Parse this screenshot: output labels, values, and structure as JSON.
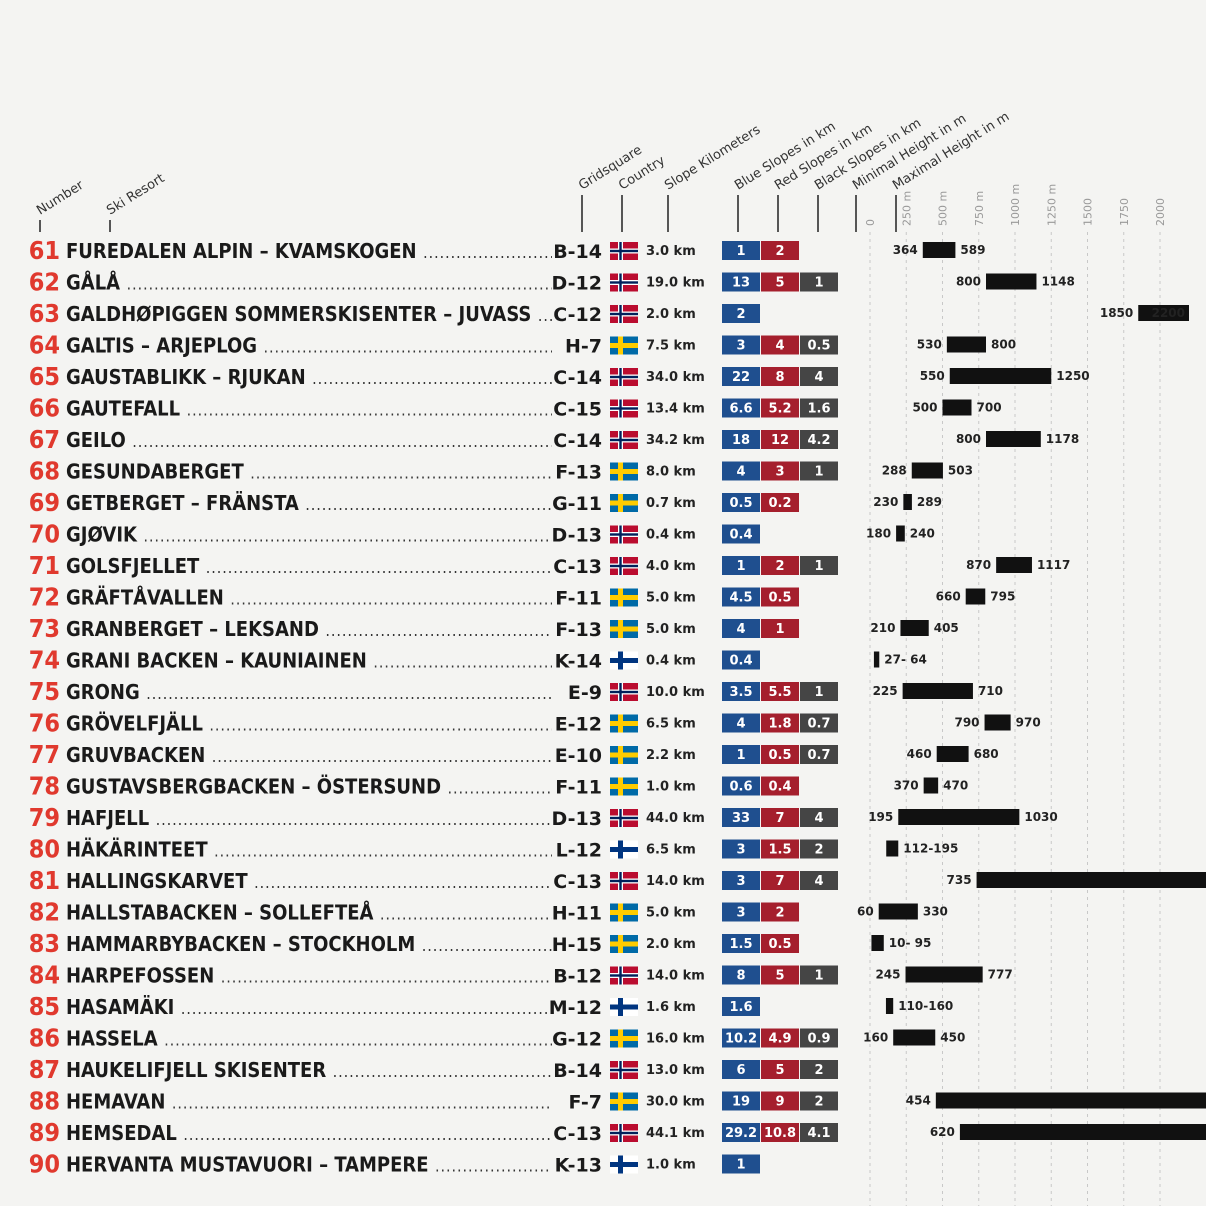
{
  "headers": {
    "number": "Number",
    "resort": "Ski Resort",
    "grid": "Gridsquare",
    "country": "Country",
    "km": "Slope Kilometers",
    "blue": "Blue Slopes in km",
    "red": "Red Slopes in km",
    "black": "Black Slopes in km",
    "min": "Minimal Height in m",
    "max": "Maximal Height in m"
  },
  "height_axis": [
    {
      "value": 0,
      "label": "0"
    },
    {
      "value": 250,
      "label": "250 m"
    },
    {
      "value": 500,
      "label": "500 m"
    },
    {
      "value": 750,
      "label": "750 m"
    },
    {
      "value": 1000,
      "label": "1000 m"
    },
    {
      "value": 1250,
      "label": "1250 m"
    },
    1500,
    1750,
    2000
  ],
  "rows": [
    {
      "number": 61,
      "name": "FUREDALEN ALPIN – KVAMSKOGEN",
      "grid": "B-14",
      "country": "NO",
      "km": "3.0 km",
      "blue": 1,
      "red": 2,
      "min": 364,
      "max": 589
    },
    {
      "number": 62,
      "name": "GÅLÅ",
      "grid": "D-12",
      "country": "NO",
      "km": "19.0 km",
      "blue": 13,
      "red": 5,
      "black": 1,
      "min": 800,
      "max": 1148
    },
    {
      "number": 63,
      "name": "GALDHØPIGGEN SOMMERSKISENTER – JUVASS",
      "grid": "C-12",
      "country": "NO",
      "km": "2.0 km",
      "blue": 2,
      "min": 1850,
      "max": 2200
    },
    {
      "number": 64,
      "name": "GALTIS – ARJEPLOG",
      "grid": "H-7",
      "country": "SE",
      "km": "7.5 km",
      "blue": 3,
      "red": 4,
      "black": 0.5,
      "min": 530,
      "max": 800
    },
    {
      "number": 65,
      "name": "GAUSTABLIKK – RJUKAN",
      "grid": "C-14",
      "country": "NO",
      "km": "34.0 km",
      "blue": 22,
      "red": 8,
      "black": 4,
      "min": 550,
      "max": 1250
    },
    {
      "number": 66,
      "name": "GAUTEFALL",
      "grid": "C-15",
      "country": "NO",
      "km": "13.4 km",
      "blue": 6.6,
      "red": 5.2,
      "black": 1.6,
      "min": 500,
      "max": 700
    },
    {
      "number": 67,
      "name": "GEILO",
      "grid": "C-14",
      "country": "NO",
      "km": "34.2 km",
      "blue": 18,
      "red": 12,
      "black": 4.2,
      "min": 800,
      "max": 1178
    },
    {
      "number": 68,
      "name": "GESUNDABERGET",
      "grid": "F-13",
      "country": "SE",
      "km": "8.0 km",
      "blue": 4,
      "red": 3,
      "black": 1,
      "min": 288,
      "max": 503
    },
    {
      "number": 69,
      "name": "GETBERGET – FRÄNSTA",
      "grid": "G-11",
      "country": "SE",
      "km": "0.7 km",
      "blue": 0.5,
      "red": 0.2,
      "min": 230,
      "max": 289
    },
    {
      "number": 70,
      "name": "GJØVIK",
      "grid": "D-13",
      "country": "NO",
      "km": "0.4 km",
      "blue": 0.4,
      "min": 180,
      "max": 240
    },
    {
      "number": 71,
      "name": "GOLSFJELLET",
      "grid": "C-13",
      "country": "NO",
      "km": "4.0 km",
      "blue": 1,
      "red": 2,
      "black": 1,
      "min": 870,
      "max": 1117
    },
    {
      "number": 72,
      "name": "GRÄFTÅVALLEN",
      "grid": "F-11",
      "country": "SE",
      "km": "5.0 km",
      "blue": 4.5,
      "red": 0.5,
      "min": 660,
      "max": 795
    },
    {
      "number": 73,
      "name": "GRANBERGET – LEKSAND",
      "grid": "F-13",
      "country": "SE",
      "km": "5.0 km",
      "blue": 4,
      "red": 1,
      "min": 210,
      "max": 405
    },
    {
      "number": 74,
      "name": "GRANI BACKEN – KAUNIAINEN",
      "grid": "K-14",
      "country": "FI",
      "km": "0.4 km",
      "blue": 0.4,
      "min": 27,
      "max": 64,
      "range_label": "27- 64"
    },
    {
      "number": 75,
      "name": "GRONG",
      "grid": "E-9",
      "country": "NO",
      "km": "10.0 km",
      "blue": 3.5,
      "red": 5.5,
      "black": 1,
      "min": 225,
      "max": 710
    },
    {
      "number": 76,
      "name": "GRÖVELFJÄLL",
      "grid": "E-12",
      "country": "SE",
      "km": "6.5 km",
      "blue": 4,
      "red": 1.8,
      "black": 0.7,
      "min": 790,
      "max": 970
    },
    {
      "number": 77,
      "name": "GRUVBACKEN",
      "grid": "E-10",
      "country": "SE",
      "km": "2.2 km",
      "blue": 1,
      "red": 0.5,
      "black": 0.7,
      "min": 460,
      "max": 680
    },
    {
      "number": 78,
      "name": "GUSTAVSBERGBACKEN – ÖSTERSUND",
      "grid": "F-11",
      "country": "SE",
      "km": "1.0 km",
      "blue": 0.6,
      "red": 0.4,
      "min": 370,
      "max": 470
    },
    {
      "number": 79,
      "name": "HAFJELL",
      "grid": "D-13",
      "country": "NO",
      "km": "44.0 km",
      "blue": 33,
      "red": 7,
      "black": 4,
      "min": 195,
      "max": 1030
    },
    {
      "number": 80,
      "name": "HÄKÄRINTEET",
      "grid": "L-12",
      "country": "FI",
      "km": "6.5 km",
      "blue": 3,
      "red": 1.5,
      "black": 2,
      "min": 112,
      "max": 195,
      "range_label": "112-195"
    },
    {
      "number": 81,
      "name": "HALLINGSKARVET",
      "grid": "C-13",
      "country": "NO",
      "km": "14.0 km",
      "blue": 3,
      "red": 7,
      "black": 4,
      "min": 735
    },
    {
      "number": 82,
      "name": "HALLSTABACKEN – SOLLEFTEÅ",
      "grid": "H-11",
      "country": "SE",
      "km": "5.0 km",
      "blue": 3,
      "red": 2,
      "min": 60,
      "max": 330
    },
    {
      "number": 83,
      "name": "HAMMARBYBACKEN – STOCKHOLM",
      "grid": "H-15",
      "country": "SE",
      "km": "2.0 km",
      "blue": 1.5,
      "red": 0.5,
      "min": 10,
      "max": 95,
      "range_label": "10- 95"
    },
    {
      "number": 84,
      "name": "HARPEFOSSEN",
      "grid": "B-12",
      "country": "NO",
      "km": "14.0 km",
      "blue": 8,
      "red": 5,
      "black": 1,
      "min": 245,
      "max": 777
    },
    {
      "number": 85,
      "name": "HASAMÄKI",
      "grid": "M-12",
      "country": "FI",
      "km": "1.6 km",
      "blue": 1.6,
      "min": 110,
      "max": 160,
      "range_label": "110-160"
    },
    {
      "number": 86,
      "name": "HASSELA",
      "grid": "G-12",
      "country": "SE",
      "km": "16.0 km",
      "blue": 10.2,
      "red": 4.9,
      "black": 0.9,
      "min": 160,
      "max": 450
    },
    {
      "number": 87,
      "name": "HAUKELIFJELL SKISENTER",
      "grid": "B-14",
      "country": "NO",
      "km": "13.0 km",
      "blue": 6,
      "red": 5,
      "black": 2
    },
    {
      "number": 88,
      "name": "HEMAVAN",
      "grid": "F-7",
      "country": "SE",
      "km": "30.0 km",
      "blue": 19,
      "red": 9,
      "black": 2,
      "min": 454
    },
    {
      "number": 89,
      "name": "HEMSEDAL",
      "grid": "C-13",
      "country": "NO",
      "km": "44.1 km",
      "blue": 29.2,
      "red": 10.8,
      "black": 4.1,
      "min": 620
    },
    {
      "number": 90,
      "name": "HERVANTA MUSTAVUORI – TAMPERE",
      "grid": "K-13",
      "country": "FI",
      "km": "1.0 km",
      "blue": 1
    }
  ]
}
